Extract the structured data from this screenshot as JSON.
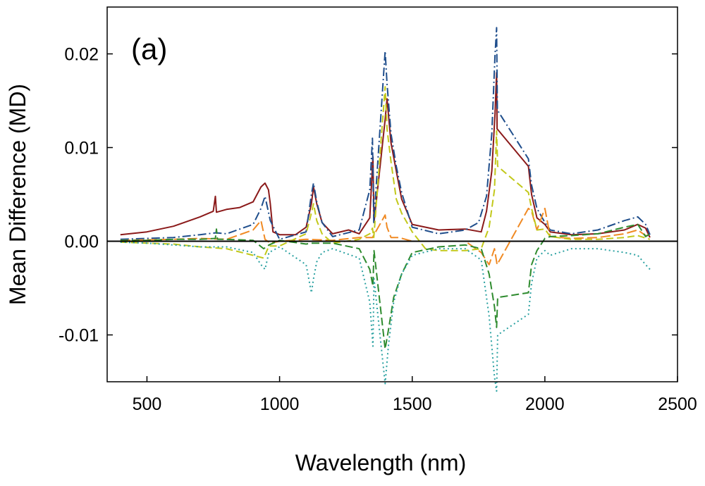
{
  "chart_data": {
    "type": "line",
    "panel_label": "(a)",
    "xlabel": "Wavelength (nm)",
    "ylabel": "Mean Difference (MD)",
    "xlim": [
      350,
      2500
    ],
    "ylim": [
      -0.015,
      0.025
    ],
    "xticks": [
      500,
      1000,
      1500,
      2000,
      2500
    ],
    "xtick_labels": [
      "500",
      "1000",
      "1500",
      "2000",
      "2500"
    ],
    "yticks": [
      -0.01,
      0.0,
      0.01,
      0.02
    ],
    "ytick_labels": [
      "-0.01",
      "0.00",
      "0.01",
      "0.02"
    ],
    "zero_line": 0,
    "legend": "none",
    "series": [
      {
        "name": "dark red solid",
        "color": "#8b1a1a",
        "dash": "none",
        "points": [
          [
            400,
            0.0007
          ],
          [
            500,
            0.001
          ],
          [
            600,
            0.0016
          ],
          [
            700,
            0.0026
          ],
          [
            750,
            0.0032
          ],
          [
            758,
            0.0048
          ],
          [
            762,
            0.0031
          ],
          [
            800,
            0.0034
          ],
          [
            850,
            0.0036
          ],
          [
            900,
            0.0042
          ],
          [
            930,
            0.0058
          ],
          [
            945,
            0.0062
          ],
          [
            958,
            0.0055
          ],
          [
            965,
            0.004
          ],
          [
            975,
            0.001
          ],
          [
            1000,
            0.0007
          ],
          [
            1060,
            0.0007
          ],
          [
            1100,
            0.0015
          ],
          [
            1120,
            0.004
          ],
          [
            1128,
            0.0058
          ],
          [
            1140,
            0.004
          ],
          [
            1160,
            0.002
          ],
          [
            1200,
            0.0008
          ],
          [
            1260,
            0.0012
          ],
          [
            1300,
            0.0008
          ],
          [
            1340,
            0.0025
          ],
          [
            1352,
            0.009
          ],
          [
            1356,
            0.002
          ],
          [
            1398,
            0.013
          ],
          [
            1405,
            0.0152
          ],
          [
            1420,
            0.0105
          ],
          [
            1440,
            0.0075
          ],
          [
            1460,
            0.0045
          ],
          [
            1475,
            0.0035
          ],
          [
            1500,
            0.0018
          ],
          [
            1600,
            0.0012
          ],
          [
            1700,
            0.0013
          ],
          [
            1760,
            0.001
          ],
          [
            1780,
            0.0032
          ],
          [
            1800,
            0.0075
          ],
          [
            1812,
            0.0135
          ],
          [
            1818,
            0.018
          ],
          [
            1820,
            0.012
          ],
          [
            1938,
            0.008
          ],
          [
            1950,
            0.005
          ],
          [
            1970,
            0.0025
          ],
          [
            2000,
            0.0018
          ],
          [
            2020,
            0.001
          ],
          [
            2100,
            0.0007
          ],
          [
            2200,
            0.0008
          ],
          [
            2300,
            0.0012
          ],
          [
            2350,
            0.0018
          ],
          [
            2380,
            0.0014
          ],
          [
            2396,
            0.0004
          ]
        ]
      },
      {
        "name": "navy dash-dot",
        "color": "#1f4e8c",
        "dash": "12,4,2,4",
        "points": [
          [
            400,
            0.0002
          ],
          [
            600,
            0.0004
          ],
          [
            700,
            0.0007
          ],
          [
            760,
            0.0009
          ],
          [
            800,
            0.0008
          ],
          [
            900,
            0.0018
          ],
          [
            930,
            0.0035
          ],
          [
            945,
            0.0048
          ],
          [
            965,
            0.0022
          ],
          [
            1000,
            0.0002
          ],
          [
            1100,
            0.001
          ],
          [
            1120,
            0.005
          ],
          [
            1128,
            0.0062
          ],
          [
            1140,
            0.0042
          ],
          [
            1160,
            0.002
          ],
          [
            1200,
            0.0005
          ],
          [
            1300,
            0.0012
          ],
          [
            1340,
            0.0055
          ],
          [
            1350,
            0.011
          ],
          [
            1355,
            0.002
          ],
          [
            1398,
            0.0203
          ],
          [
            1405,
            0.0168
          ],
          [
            1420,
            0.0115
          ],
          [
            1440,
            0.008
          ],
          [
            1460,
            0.0052
          ],
          [
            1500,
            0.0015
          ],
          [
            1600,
            0.0008
          ],
          [
            1700,
            0.0012
          ],
          [
            1750,
            0.002
          ],
          [
            1780,
            0.0048
          ],
          [
            1800,
            0.0115
          ],
          [
            1812,
            0.0198
          ],
          [
            1818,
            0.0228
          ],
          [
            1821,
            0.014
          ],
          [
            1938,
            0.0088
          ],
          [
            1950,
            0.006
          ],
          [
            1970,
            0.0035
          ],
          [
            2000,
            0.002
          ],
          [
            2020,
            0.0012
          ],
          [
            2100,
            0.0008
          ],
          [
            2200,
            0.0012
          ],
          [
            2300,
            0.0022
          ],
          [
            2350,
            0.0026
          ],
          [
            2380,
            0.0018
          ],
          [
            2396,
            0.0007
          ]
        ]
      },
      {
        "name": "orange long dash",
        "color": "#f08a24",
        "dash": "14,5",
        "points": [
          [
            400,
            0.0001
          ],
          [
            600,
            0.0002
          ],
          [
            700,
            0.0003
          ],
          [
            800,
            0.0002
          ],
          [
            900,
            0.0012
          ],
          [
            930,
            0.0022
          ],
          [
            945,
            0.0002
          ],
          [
            965,
            -0.0002
          ],
          [
            1000,
            0.0
          ],
          [
            1100,
            0.0002
          ],
          [
            1200,
            0.0001
          ],
          [
            1300,
            0.0004
          ],
          [
            1350,
            0.0004
          ],
          [
            1398,
            0.0028
          ],
          [
            1405,
            0.0015
          ],
          [
            1420,
            0.0004
          ],
          [
            1450,
            0.0004
          ],
          [
            1500,
            0.0
          ],
          [
            1600,
            0.0
          ],
          [
            1700,
            0.0
          ],
          [
            1760,
            -0.0012
          ],
          [
            1790,
            -0.0025
          ],
          [
            1810,
            -0.0008
          ],
          [
            1820,
            -0.0025
          ],
          [
            1938,
            0.0035
          ],
          [
            1950,
            0.0032
          ],
          [
            1970,
            0.0012
          ],
          [
            2000,
            0.0035
          ],
          [
            2020,
            0.0005
          ],
          [
            2100,
            0.0003
          ],
          [
            2200,
            0.0004
          ],
          [
            2300,
            0.0008
          ],
          [
            2350,
            0.0012
          ],
          [
            2380,
            0.0006
          ],
          [
            2396,
            0.0006
          ]
        ]
      },
      {
        "name": "yellow-green dashed",
        "color": "#c2c81a",
        "dash": "10,5",
        "points": [
          [
            400,
            -0.0001
          ],
          [
            500,
            -0.0002
          ],
          [
            600,
            -0.0003
          ],
          [
            700,
            -0.0006
          ],
          [
            800,
            -0.0008
          ],
          [
            900,
            -0.0015
          ],
          [
            940,
            -0.0018
          ],
          [
            960,
            -0.0005
          ],
          [
            1000,
            -0.0005
          ],
          [
            1100,
            0.0008
          ],
          [
            1120,
            0.003
          ],
          [
            1128,
            0.004
          ],
          [
            1140,
            0.0022
          ],
          [
            1160,
            0.0008
          ],
          [
            1200,
            -0.0002
          ],
          [
            1300,
            0.0002
          ],
          [
            1340,
            0.0008
          ],
          [
            1350,
            0.0014
          ],
          [
            1355,
            0.0004
          ],
          [
            1398,
            0.0165
          ],
          [
            1405,
            0.012
          ],
          [
            1420,
            0.0085
          ],
          [
            1440,
            0.0045
          ],
          [
            1460,
            0.003
          ],
          [
            1500,
            0.001
          ],
          [
            1550,
            -0.0008
          ],
          [
            1600,
            -0.001
          ],
          [
            1700,
            -0.001
          ],
          [
            1760,
            -0.0008
          ],
          [
            1790,
            0.0015
          ],
          [
            1810,
            0.0055
          ],
          [
            1818,
            0.0118
          ],
          [
            1822,
            0.008
          ],
          [
            1938,
            0.0052
          ],
          [
            1950,
            0.0035
          ],
          [
            1970,
            0.0012
          ],
          [
            2000,
            0.0013
          ],
          [
            2020,
            0.0005
          ],
          [
            2100,
            0.0002
          ],
          [
            2200,
            0.0002
          ],
          [
            2300,
            0.0004
          ],
          [
            2350,
            0.0006
          ],
          [
            2396,
            0.0002
          ]
        ]
      },
      {
        "name": "green dashed",
        "color": "#2e8b2e",
        "dash": "11,5",
        "points": [
          [
            400,
            0.0001
          ],
          [
            500,
            0.0001
          ],
          [
            600,
            0.0002
          ],
          [
            700,
            0.0002
          ],
          [
            758,
            0.0003
          ],
          [
            762,
            0.0013
          ],
          [
            766,
            0.0002
          ],
          [
            800,
            0.0002
          ],
          [
            900,
            0.0001
          ],
          [
            940,
            -0.0008
          ],
          [
            960,
            -0.0004
          ],
          [
            1000,
            0.0001
          ],
          [
            1100,
            -0.0003
          ],
          [
            1120,
            -0.0002
          ],
          [
            1200,
            -0.0002
          ],
          [
            1300,
            -0.0008
          ],
          [
            1340,
            -0.003
          ],
          [
            1352,
            -0.0048
          ],
          [
            1356,
            -0.001
          ],
          [
            1398,
            -0.0115
          ],
          [
            1410,
            -0.0095
          ],
          [
            1430,
            -0.006
          ],
          [
            1460,
            -0.0035
          ],
          [
            1500,
            -0.0012
          ],
          [
            1600,
            -0.0006
          ],
          [
            1700,
            -0.0004
          ],
          [
            1760,
            -0.0008
          ],
          [
            1790,
            -0.0035
          ],
          [
            1810,
            -0.007
          ],
          [
            1818,
            -0.0092
          ],
          [
            1822,
            -0.006
          ],
          [
            1938,
            -0.0055
          ],
          [
            1950,
            -0.0025
          ],
          [
            1970,
            -0.001
          ],
          [
            2000,
            0.0003
          ],
          [
            2020,
            0.0005
          ],
          [
            2100,
            0.0006
          ],
          [
            2200,
            0.0008
          ],
          [
            2300,
            0.0015
          ],
          [
            2350,
            0.0018
          ],
          [
            2380,
            0.0005
          ],
          [
            2396,
            0.0008
          ]
        ]
      },
      {
        "name": "teal dotted",
        "color": "#2aa1a1",
        "dash": "2,4",
        "points": [
          [
            400,
            -0.0001
          ],
          [
            500,
            -0.0002
          ],
          [
            600,
            -0.0004
          ],
          [
            700,
            -0.0006
          ],
          [
            800,
            -0.0006
          ],
          [
            900,
            -0.0012
          ],
          [
            930,
            -0.0025
          ],
          [
            945,
            -0.003
          ],
          [
            960,
            -0.0012
          ],
          [
            1000,
            -0.0006
          ],
          [
            1100,
            -0.0025
          ],
          [
            1120,
            -0.0055
          ],
          [
            1128,
            -0.004
          ],
          [
            1140,
            -0.0022
          ],
          [
            1160,
            -0.0012
          ],
          [
            1200,
            -0.0008
          ],
          [
            1300,
            -0.0018
          ],
          [
            1340,
            -0.0065
          ],
          [
            1352,
            -0.0112
          ],
          [
            1356,
            -0.004
          ],
          [
            1398,
            -0.0152
          ],
          [
            1410,
            -0.0112
          ],
          [
            1430,
            -0.0065
          ],
          [
            1460,
            -0.0035
          ],
          [
            1500,
            -0.0015
          ],
          [
            1600,
            -0.0008
          ],
          [
            1700,
            -0.0008
          ],
          [
            1760,
            -0.002
          ],
          [
            1790,
            -0.008
          ],
          [
            1810,
            -0.0145
          ],
          [
            1818,
            -0.016
          ],
          [
            1822,
            -0.01
          ],
          [
            1938,
            -0.0078
          ],
          [
            1950,
            -0.0045
          ],
          [
            1970,
            -0.0018
          ],
          [
            2000,
            -0.001
          ],
          [
            2020,
            -0.0015
          ],
          [
            2100,
            -0.0008
          ],
          [
            2200,
            -0.0008
          ],
          [
            2300,
            -0.0012
          ],
          [
            2350,
            -0.0015
          ],
          [
            2380,
            -0.0025
          ],
          [
            2396,
            -0.003
          ]
        ]
      }
    ]
  }
}
